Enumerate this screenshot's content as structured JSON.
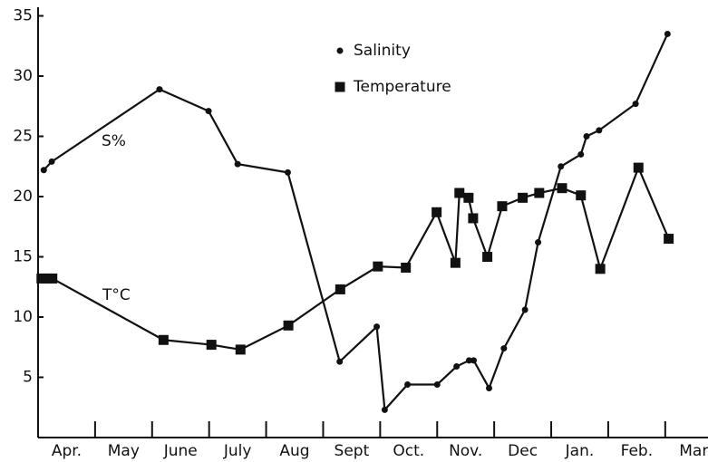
{
  "chart_data": {
    "type": "line",
    "categories": [
      "Apr.",
      "May",
      "June",
      "July",
      "Aug",
      "Sept",
      "Oct.",
      "Nov.",
      "Dec",
      "Jan.",
      "Feb.",
      "Mar"
    ],
    "xlim": [
      0,
      11.75
    ],
    "xticks": [
      1,
      2,
      3,
      4,
      5,
      6,
      7,
      8,
      9,
      10,
      11
    ],
    "ylim": [
      0,
      35
    ],
    "yticks": [
      5,
      10,
      15,
      20,
      25,
      30,
      35
    ],
    "annotations": [
      "S%",
      "T°C"
    ],
    "series": [
      {
        "name": "Salinity",
        "marker": "circle",
        "color": "#111",
        "x": [
          0.1,
          0.24,
          2.13,
          2.99,
          3.5,
          4.38,
          5.29,
          5.94,
          6.08,
          6.48,
          7.0,
          7.34,
          7.56,
          7.64,
          7.91,
          8.17,
          8.54,
          8.77,
          9.17,
          9.52,
          9.62,
          9.84,
          10.48,
          11.04
        ],
        "values": [
          22.2,
          22.9,
          28.9,
          27.1,
          22.7,
          22.0,
          6.3,
          9.2,
          2.3,
          4.4,
          4.4,
          5.9,
          6.4,
          6.4,
          4.1,
          7.4,
          10.6,
          16.2,
          22.5,
          23.5,
          25.0,
          25.5,
          27.7,
          33.5
        ]
      },
      {
        "name": "Temperature",
        "marker": "square",
        "color": "#111",
        "x": [
          0.06,
          0.16,
          0.25,
          2.2,
          3.04,
          3.55,
          4.39,
          5.3,
          5.96,
          6.45,
          6.99,
          7.32,
          7.39,
          7.55,
          7.63,
          7.88,
          8.14,
          8.5,
          8.79,
          9.19,
          9.52,
          9.86,
          10.53,
          11.06
        ],
        "values": [
          13.2,
          13.2,
          13.2,
          8.1,
          7.7,
          7.3,
          9.3,
          12.3,
          14.2,
          14.1,
          18.7,
          14.5,
          20.3,
          19.9,
          18.2,
          15.0,
          19.2,
          19.9,
          20.3,
          20.7,
          20.1,
          14.0,
          22.4,
          16.5
        ]
      }
    ]
  }
}
